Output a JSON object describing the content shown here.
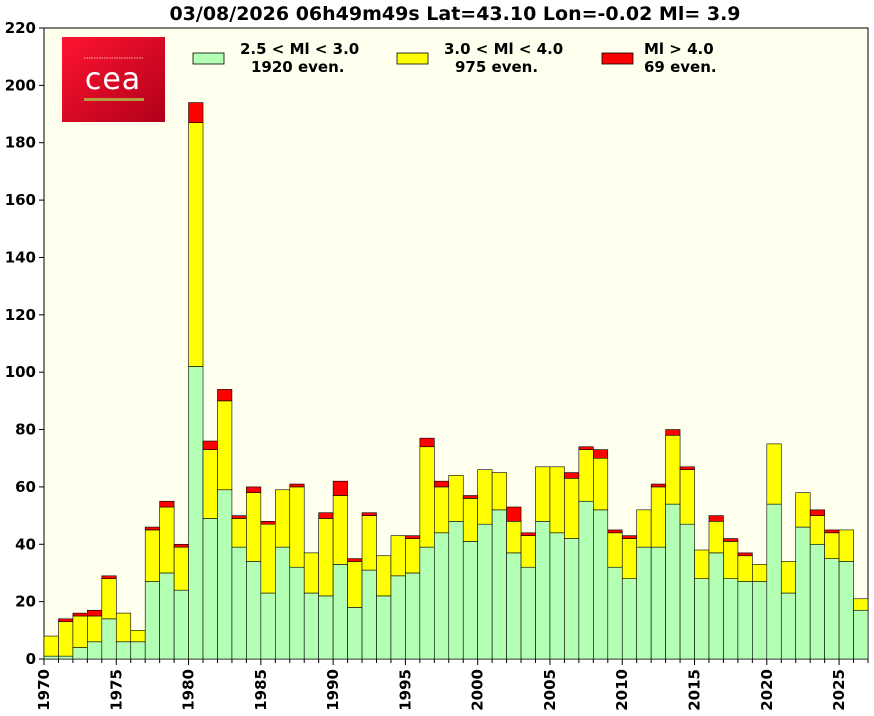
{
  "chart_data": {
    "type": "bar",
    "stacked": true,
    "title": "03/08/2026 06h49m49s Lat=43.10 Lon=-0.02 Ml= 3.9",
    "xlabel": "",
    "ylabel": "",
    "xlim": [
      1970,
      2027
    ],
    "ylim": [
      0,
      220
    ],
    "x_ticks": [
      "1970",
      "1975",
      "1980",
      "1985",
      "1990",
      "1995",
      "2000",
      "2005",
      "2010",
      "2015",
      "2020",
      "2025"
    ],
    "y_ticks": [
      "0",
      "20",
      "40",
      "60",
      "80",
      "100",
      "120",
      "140",
      "160",
      "180",
      "200",
      "220"
    ],
    "legend_position": "top",
    "plot_background": "#ffffee",
    "categories": [
      1970,
      1971,
      1972,
      1973,
      1974,
      1975,
      1976,
      1977,
      1978,
      1979,
      1980,
      1981,
      1982,
      1983,
      1984,
      1985,
      1986,
      1987,
      1988,
      1989,
      1990,
      1991,
      1992,
      1993,
      1994,
      1995,
      1996,
      1997,
      1998,
      1999,
      2000,
      2001,
      2002,
      2003,
      2004,
      2005,
      2006,
      2007,
      2008,
      2009,
      2010,
      2011,
      2012,
      2013,
      2014,
      2015,
      2016,
      2017,
      2018,
      2019,
      2020,
      2021,
      2022,
      2023,
      2024,
      2025,
      2026
    ],
    "series": [
      {
        "legend_line1": "2.5 < Ml <  3.0",
        "legend_line2": "1920 even.",
        "color": "#b3ffb3",
        "values": [
          1,
          1,
          4,
          6,
          14,
          6,
          6,
          27,
          30,
          24,
          102,
          49,
          59,
          39,
          34,
          23,
          39,
          32,
          23,
          22,
          33,
          18,
          31,
          22,
          29,
          30,
          39,
          44,
          48,
          41,
          47,
          52,
          37,
          32,
          48,
          44,
          42,
          55,
          52,
          32,
          28,
          39,
          39,
          54,
          47,
          28,
          37,
          28,
          27,
          27,
          54,
          23,
          46,
          40,
          35,
          34,
          17
        ]
      },
      {
        "legend_line1": "3.0 < Ml <  4.0",
        "legend_line2": "975 even.",
        "color": "#ffff00",
        "values": [
          7,
          12,
          11,
          9,
          14,
          10,
          4,
          18,
          23,
          15,
          85,
          24,
          31,
          10,
          24,
          24,
          20,
          28,
          14,
          27,
          24,
          16,
          19,
          14,
          14,
          12,
          35,
          16,
          16,
          15,
          19,
          13,
          11,
          11,
          19,
          23,
          21,
          18,
          18,
          12,
          14,
          13,
          21,
          24,
          19,
          10,
          11,
          13,
          9,
          6,
          21,
          11,
          12,
          10,
          9,
          11,
          4
        ]
      },
      {
        "legend_line1": "Ml >  4.0",
        "legend_line2": "69 even.",
        "color": "#ff0000",
        "values": [
          0,
          1,
          1,
          2,
          1,
          0,
          0,
          1,
          2,
          1,
          7,
          3,
          4,
          1,
          2,
          1,
          0,
          1,
          0,
          2,
          5,
          1,
          1,
          0,
          0,
          1,
          3,
          2,
          0,
          1,
          0,
          0,
          5,
          1,
          0,
          0,
          2,
          1,
          3,
          1,
          1,
          0,
          1,
          2,
          1,
          0,
          2,
          1,
          1,
          0,
          0,
          0,
          0,
          2,
          1,
          0,
          0
        ]
      }
    ]
  },
  "logo": {
    "text": "cea",
    "colors": {
      "red_dark": "#c8001e",
      "red_light": "#ff0a28",
      "gold": "#b49b3c"
    }
  }
}
